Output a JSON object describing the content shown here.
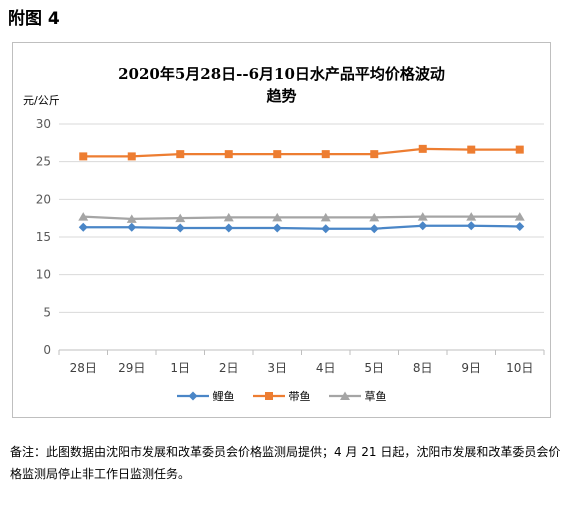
{
  "figure_label": "附图 4",
  "chart_data": {
    "type": "line",
    "title_line1": "2020年5月28日--6月10日水产品平均价格波动",
    "title_line2": "趋势",
    "unit": "元/公斤",
    "categories": [
      "28日",
      "29日",
      "1日",
      "2日",
      "3日",
      "4日",
      "5日",
      "8日",
      "9日",
      "10日"
    ],
    "ylim": [
      0,
      30
    ],
    "yticks": [
      0,
      5,
      10,
      15,
      20,
      25,
      30
    ],
    "grid": true,
    "legend_position": "bottom",
    "series": [
      {
        "name": "鲤鱼",
        "color": "#4a86c7",
        "marker": "diamond",
        "values": [
          16.3,
          16.3,
          16.2,
          16.2,
          16.2,
          16.1,
          16.1,
          16.5,
          16.5,
          16.4
        ]
      },
      {
        "name": "带鱼",
        "color": "#ed7d31",
        "marker": "square",
        "values": [
          25.7,
          25.7,
          26.0,
          26.0,
          26.0,
          26.0,
          26.0,
          26.7,
          26.6,
          26.6
        ]
      },
      {
        "name": "草鱼",
        "color": "#a5a5a5",
        "marker": "triangle",
        "values": [
          17.7,
          17.4,
          17.5,
          17.6,
          17.6,
          17.6,
          17.6,
          17.7,
          17.7,
          17.7
        ]
      }
    ]
  },
  "footnote": "备注：此图数据由沈阳市发展和改革委员会价格监测局提供；4 月 21 日起，沈阳市发展和改革委员会价格监测局停止非工作日监测任务。"
}
